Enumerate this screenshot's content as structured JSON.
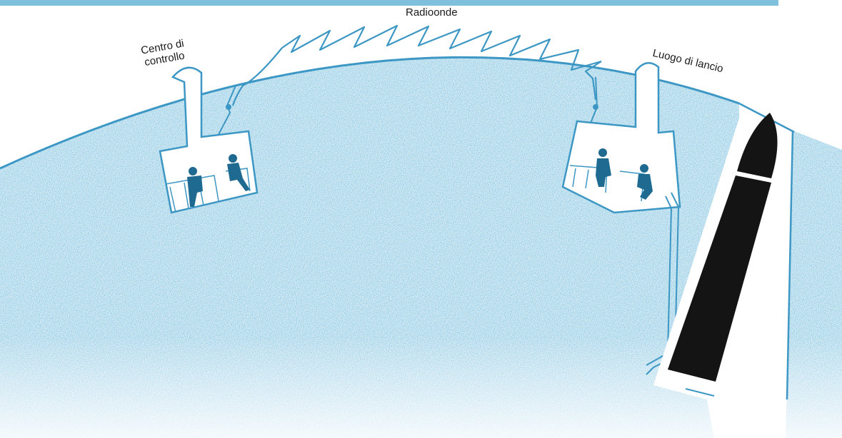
{
  "labels": {
    "radio_waves": "Radioonde",
    "control_center": [
      "Centro di",
      "controllo"
    ],
    "launch_site": "Luogo di lancio"
  },
  "colors": {
    "ground_fill": "#cfe6f2",
    "ground_speckle": "#4aa0c8",
    "outline": "#3d97c4",
    "rocket": "#141414",
    "person": "#1f6a91",
    "sky": "#ffffff"
  }
}
